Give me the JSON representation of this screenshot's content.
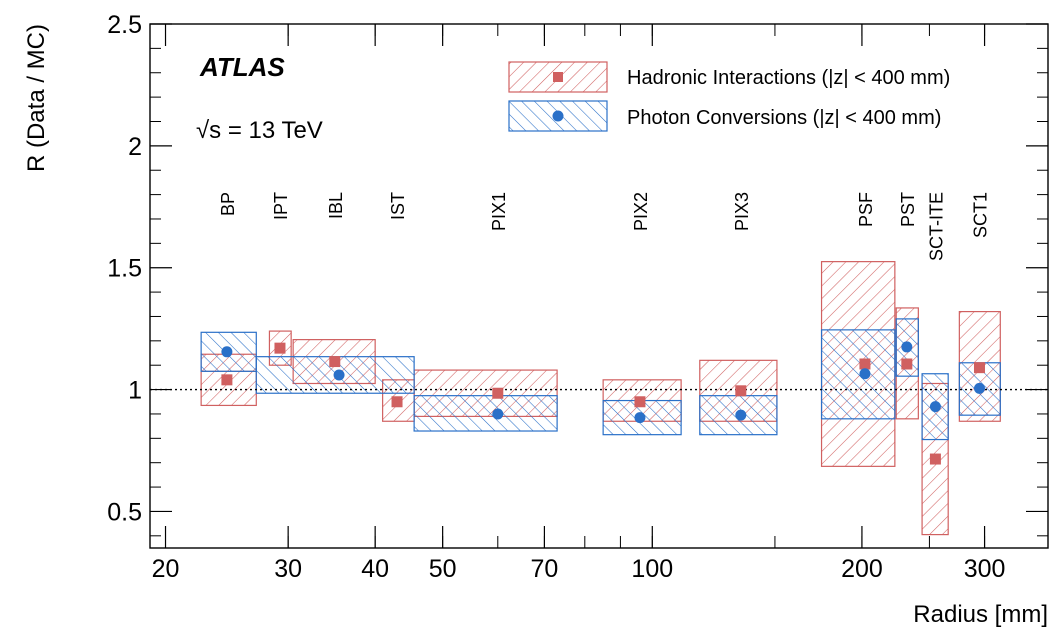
{
  "chart_data": {
    "type": "scatter",
    "title": "",
    "experiment": "ATLAS",
    "energy_label": "√s = 13 TeV",
    "xlabel": "Radius [mm]",
    "ylabel": "R (Data / MC)",
    "xscale": "log",
    "xlim": [
      19,
      370
    ],
    "ylim": [
      0.35,
      2.5
    ],
    "xticks": [
      "20",
      "30",
      "40",
      "50",
      "70",
      "100",
      "200",
      "300"
    ],
    "xtick_values": [
      20,
      30,
      40,
      50,
      70,
      100,
      200,
      300
    ],
    "yticks": [
      "0.5",
      "1",
      "1.5",
      "2",
      "2.5"
    ],
    "ytick_values": [
      0.5,
      1,
      1.5,
      2,
      2.5
    ],
    "reference_line": 1.0,
    "legend_position": "top-right",
    "layers": [
      {
        "label": "BP",
        "x": 24.5
      },
      {
        "label": "IPT",
        "x": 29.2
      },
      {
        "label": "IBL",
        "x": 35.0
      },
      {
        "label": "IST",
        "x": 43.0
      },
      {
        "label": "PIX1",
        "x": 60.0
      },
      {
        "label": "PIX2",
        "x": 96.0
      },
      {
        "label": "PIX3",
        "x": 134.0
      },
      {
        "label": "PSF",
        "x": 202.0
      },
      {
        "label": "PST",
        "x": 232.0
      },
      {
        "label": "SCT-ITE",
        "x": 255.0
      },
      {
        "label": "SCT1",
        "x": 295.0
      }
    ],
    "series": [
      {
        "name": "Hadronic Interactions (|z| < 400 mm)",
        "color": "#d06060",
        "marker": "square",
        "points": [
          {
            "x": 24.5,
            "y": 1.04,
            "x_lo": 22.5,
            "x_hi": 27.0,
            "y_lo": 0.935,
            "y_hi": 1.145,
            "stat_lo": 1.075
          },
          {
            "x": 29.2,
            "y": 1.17,
            "x_lo": 28.2,
            "x_hi": 30.3,
            "y_lo": 1.1,
            "y_hi": 1.24
          },
          {
            "x": 35.0,
            "y": 1.115,
            "x_lo": 30.5,
            "x_hi": 40.0,
            "y_lo": 1.025,
            "y_hi": 1.205
          },
          {
            "x": 43.0,
            "y": 0.95,
            "x_lo": 41.0,
            "x_hi": 45.5,
            "y_lo": 0.87,
            "y_hi": 1.04
          },
          {
            "x": 60.0,
            "y": 0.985,
            "x_lo": 45.5,
            "x_hi": 73.0,
            "y_lo": 0.89,
            "y_hi": 1.08
          },
          {
            "x": 96.0,
            "y": 0.95,
            "x_lo": 85.0,
            "x_hi": 110.0,
            "y_lo": 0.87,
            "y_hi": 1.04
          },
          {
            "x": 134.0,
            "y": 0.995,
            "x_lo": 117.0,
            "x_hi": 151.0,
            "y_lo": 0.87,
            "y_hi": 1.12
          },
          {
            "x": 202.0,
            "y": 1.105,
            "x_lo": 175.0,
            "x_hi": 223.0,
            "y_lo": 0.685,
            "y_hi": 1.525
          },
          {
            "x": 232.0,
            "y": 1.105,
            "x_lo": 224.0,
            "x_hi": 241.0,
            "y_lo": 0.88,
            "y_hi": 1.335
          },
          {
            "x": 255.0,
            "y": 0.715,
            "x_lo": 244.0,
            "x_hi": 266.0,
            "y_lo": 0.405,
            "y_hi": 1.025
          },
          {
            "x": 295.0,
            "y": 1.09,
            "x_lo": 276.0,
            "x_hi": 316.0,
            "y_lo": 0.87,
            "y_hi": 1.32
          }
        ]
      },
      {
        "name": "Photon Conversions (|z| < 400 mm)",
        "color": "#2a70c8",
        "marker": "circle",
        "points": [
          {
            "x": 24.5,
            "y": 1.155,
            "x_lo": 22.5,
            "x_hi": 27.0,
            "y_lo": 1.075,
            "y_hi": 1.235
          },
          {
            "x": 35.5,
            "y": 1.06,
            "x_lo": 27.0,
            "x_hi": 45.5,
            "y_lo": 0.985,
            "y_hi": 1.135
          },
          {
            "x": 60.0,
            "y": 0.9,
            "x_lo": 45.5,
            "x_hi": 73.0,
            "y_lo": 0.83,
            "y_hi": 0.975
          },
          {
            "x": 96.0,
            "y": 0.885,
            "x_lo": 85.0,
            "x_hi": 110.0,
            "y_lo": 0.815,
            "y_hi": 0.955
          },
          {
            "x": 134.0,
            "y": 0.895,
            "x_lo": 117.0,
            "x_hi": 151.0,
            "y_lo": 0.815,
            "y_hi": 0.975
          },
          {
            "x": 202.0,
            "y": 1.065,
            "x_lo": 175.0,
            "x_hi": 223.0,
            "y_lo": 0.88,
            "y_hi": 1.245
          },
          {
            "x": 232.0,
            "y": 1.175,
            "x_lo": 224.0,
            "x_hi": 241.0,
            "y_lo": 1.055,
            "y_hi": 1.29
          },
          {
            "x": 255.0,
            "y": 0.93,
            "x_lo": 244.0,
            "x_hi": 266.0,
            "y_lo": 0.795,
            "y_hi": 1.065
          },
          {
            "x": 295.0,
            "y": 1.005,
            "x_lo": 276.0,
            "x_hi": 316.0,
            "y_lo": 0.895,
            "y_hi": 1.11
          }
        ]
      }
    ]
  }
}
